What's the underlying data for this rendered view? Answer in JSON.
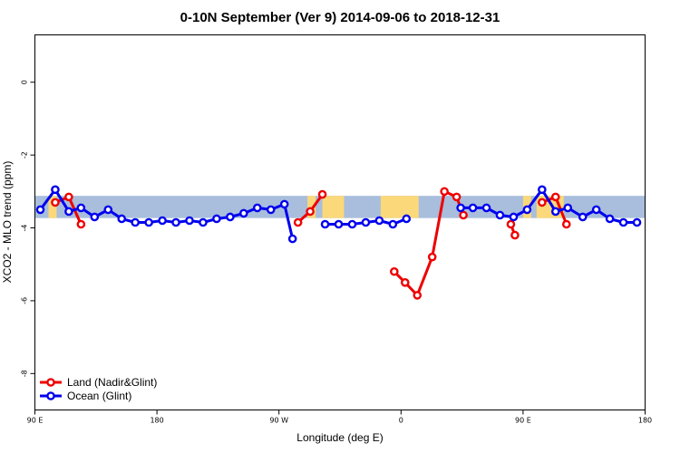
{
  "chart_data": {
    "type": "line",
    "title": "0-10N September (Ver 9)   2014-09-06 to 2018-12-31",
    "xlabel": "Longitude (deg E)",
    "ylabel": "XCO2 - MLO trend (ppm)",
    "x_domain_deg_east": [
      90,
      540
    ],
    "xlim": [
      90,
      540
    ],
    "ylim": [
      -9.0,
      1.3
    ],
    "x_ticks": [
      {
        "value": 90,
        "label": "90 E"
      },
      {
        "value": 180,
        "label": "180"
      },
      {
        "value": 270,
        "label": "90 W"
      },
      {
        "value": 360,
        "label": "0"
      },
      {
        "value": 450,
        "label": "90 E"
      },
      {
        "value": 540,
        "label": "180"
      }
    ],
    "y_ticks": [
      {
        "value": 0,
        "label": "0"
      },
      {
        "value": -2,
        "label": "-2"
      },
      {
        "value": -4,
        "label": "-4"
      },
      {
        "value": -6,
        "label": "-6"
      },
      {
        "value": -8,
        "label": "-8"
      }
    ],
    "grid": false,
    "legend_position": "bottom-left",
    "background_band": {
      "y_range": [
        -3.73,
        -3.12
      ],
      "ocean_color": "#a8bedc",
      "land_color": "#fbd87a",
      "land_x_ranges": [
        [
          100,
          106
        ],
        [
          291,
          297
        ],
        [
          302,
          318
        ],
        [
          345,
          373
        ],
        [
          450,
          456
        ],
        [
          460,
          480
        ]
      ]
    },
    "series": [
      {
        "name": "Land (Nadir&Glint)",
        "color": "#ee0000",
        "segments": [
          [
            [
              105,
              -3.3
            ],
            [
              115,
              -3.15
            ],
            [
              124,
              -3.9
            ]
          ],
          [
            [
              284,
              -3.85
            ],
            [
              293,
              -3.55
            ],
            [
              302,
              -3.08
            ]
          ],
          [
            [
              355,
              -5.2
            ],
            [
              363,
              -5.5
            ],
            [
              372,
              -5.85
            ],
            [
              383,
              -4.8
            ],
            [
              392,
              -3.0
            ],
            [
              401,
              -3.15
            ],
            [
              406,
              -3.65
            ]
          ],
          [
            [
              441,
              -3.9
            ],
            [
              444,
              -4.2
            ]
          ],
          [
            [
              464,
              -3.3
            ],
            [
              474,
              -3.15
            ],
            [
              482,
              -3.9
            ]
          ]
        ]
      },
      {
        "name": "Ocean (Glint)",
        "color": "#0000ee",
        "segments": [
          [
            [
              94,
              -3.5
            ],
            [
              105,
              -2.95
            ],
            [
              115,
              -3.55
            ],
            [
              124,
              -3.45
            ],
            [
              134,
              -3.7
            ],
            [
              144,
              -3.5
            ],
            [
              154,
              -3.75
            ],
            [
              164,
              -3.85
            ],
            [
              174,
              -3.85
            ],
            [
              184,
              -3.8
            ],
            [
              194,
              -3.85
            ],
            [
              204,
              -3.8
            ],
            [
              214,
              -3.85
            ],
            [
              224,
              -3.75
            ],
            [
              234,
              -3.7
            ],
            [
              244,
              -3.6
            ],
            [
              254,
              -3.45
            ],
            [
              264,
              -3.5
            ],
            [
              274,
              -3.35
            ],
            [
              280,
              -4.3
            ]
          ],
          [
            [
              304,
              -3.9
            ],
            [
              314,
              -3.9
            ],
            [
              324,
              -3.9
            ],
            [
              334,
              -3.85
            ],
            [
              344,
              -3.8
            ],
            [
              354,
              -3.9
            ],
            [
              364,
              -3.75
            ]
          ],
          [
            [
              404,
              -3.45
            ],
            [
              413,
              -3.45
            ],
            [
              423,
              -3.45
            ],
            [
              433,
              -3.65
            ],
            [
              443,
              -3.7
            ],
            [
              453,
              -3.5
            ],
            [
              464,
              -2.95
            ],
            [
              474,
              -3.55
            ],
            [
              483,
              -3.45
            ],
            [
              494,
              -3.7
            ],
            [
              504,
              -3.5
            ],
            [
              514,
              -3.75
            ],
            [
              524,
              -3.85
            ],
            [
              534,
              -3.85
            ]
          ]
        ]
      }
    ]
  }
}
